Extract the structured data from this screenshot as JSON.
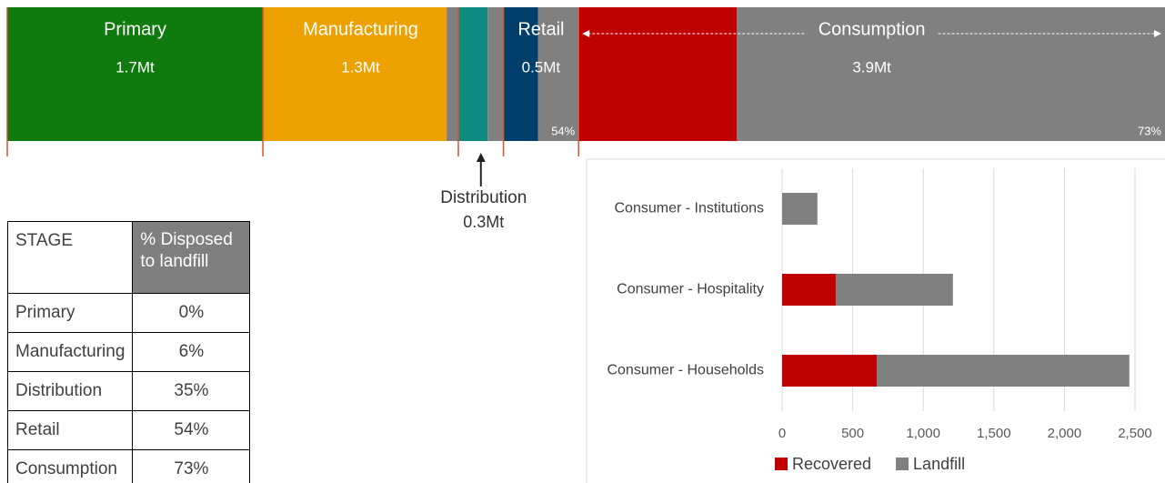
{
  "chart_data": [
    {
      "type": "band",
      "categories": [
        "Primary",
        "Manufacturing",
        "Distribution",
        "Retail",
        "Consumption"
      ],
      "values": [
        1.7,
        1.3,
        0.3,
        0.5,
        3.9
      ],
      "value_labels": [
        "1.7Mt",
        "1.3Mt",
        "0.3Mt",
        "0.5Mt",
        "3.9Mt"
      ],
      "landfill_pct": [
        0,
        6,
        35,
        54,
        73
      ],
      "pct_labels": [
        null,
        null,
        null,
        "54%",
        "73%"
      ],
      "colors": [
        "#0f7b0f",
        "#eda100",
        "#0e8a80",
        "#003f6b",
        "#c00000"
      ],
      "landfill_color": "#808080"
    },
    {
      "type": "bar",
      "categories": [
        "Consumer - Institutions",
        "Consumer - Hospitality",
        "Consumer - Households"
      ],
      "series": [
        {
          "name": "Recovered",
          "color": "#c00000",
          "values": [
            0,
            380,
            670
          ]
        },
        {
          "name": "Landfill",
          "color": "#808080",
          "values": [
            250,
            830,
            1790
          ]
        }
      ],
      "xlim": [
        0,
        2500
      ],
      "xticks": [
        0,
        500,
        {
          "value": 1000,
          "label": "1,000"
        },
        {
          "value": 1500,
          "label": "1,500"
        },
        {
          "value": 2000,
          "label": "2,000"
        },
        {
          "value": 2500,
          "label": "2,500"
        }
      ],
      "grid": true
    }
  ],
  "table": {
    "header": [
      "STAGE",
      "% Disposed to landfill"
    ],
    "rows": [
      [
        "Primary",
        "0%"
      ],
      [
        "Manufacturing",
        "6%"
      ],
      [
        "Distribution",
        "35%"
      ],
      [
        "Retail",
        "54%"
      ],
      [
        "Consumption",
        "73%"
      ]
    ]
  }
}
